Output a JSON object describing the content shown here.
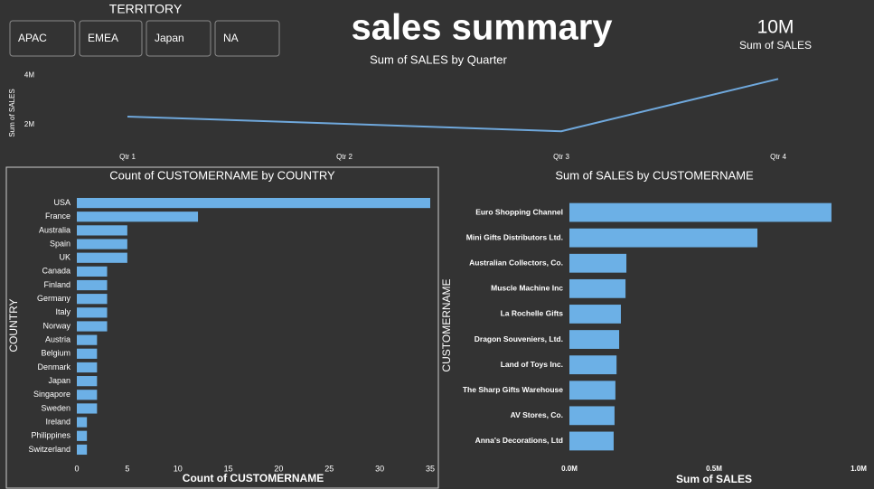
{
  "title": "sales summary",
  "slicer": {
    "title": "TERRITORY",
    "options": [
      "APAC",
      "EMEA",
      "Japan",
      "NA"
    ]
  },
  "kpi": {
    "value": "10M",
    "label": "Sum of SALES"
  },
  "chart_data": [
    {
      "type": "line",
      "title": "Sum of SALES by Quarter",
      "y_label": "Sum of SALES",
      "categories": [
        "Qtr 1",
        "Qtr 2",
        "Qtr 3",
        "Qtr 4"
      ],
      "values": [
        2330000,
        2040000,
        1740000,
        3850000
      ],
      "color": "#6fa8dc",
      "ylim": [
        1200000,
        4300000
      ],
      "yticks": [
        {
          "value": 2000000,
          "label": "2M"
        },
        {
          "value": 4000000,
          "label": "4M"
        }
      ]
    },
    {
      "type": "bar",
      "orientation": "horizontal",
      "title": "Count of CUSTOMERNAME by COUNTRY",
      "x_label": "Count of CUSTOMERNAME",
      "y_label": "COUNTRY",
      "categories": [
        "USA",
        "France",
        "Australia",
        "Spain",
        "UK",
        "Canada",
        "Finland",
        "Germany",
        "Italy",
        "Norway",
        "Austria",
        "Belgium",
        "Denmark",
        "Japan",
        "Singapore",
        "Sweden",
        "Ireland",
        "Philippines",
        "Switzerland"
      ],
      "values": [
        35,
        12,
        5,
        5,
        5,
        3,
        3,
        3,
        3,
        3,
        2,
        2,
        2,
        2,
        2,
        2,
        1,
        1,
        1
      ],
      "color": "#6cb0e6",
      "xlim": [
        0,
        35
      ],
      "xticks": [
        0,
        5,
        10,
        15,
        20,
        25,
        30,
        35
      ]
    },
    {
      "type": "bar",
      "orientation": "horizontal",
      "title": "Sum of SALES by CUSTOMERNAME",
      "x_label": "Sum of SALES",
      "y_label": "CUSTOMERNAME",
      "categories": [
        "Euro Shopping Channel",
        "Mini Gifts Distributors Ltd.",
        "Australian Collectors, Co.",
        "Muscle Machine Inc",
        "La Rochelle Gifts",
        "Dragon Souveniers, Ltd.",
        "Land of Toys Inc.",
        "The Sharp Gifts Warehouse",
        "AV Stores, Co.",
        "Anna's Decorations, Ltd"
      ],
      "values": [
        906000,
        650000,
        197000,
        194000,
        178000,
        172000,
        163000,
        159000,
        156000,
        153000
      ],
      "color": "#6cb0e6",
      "xlim": [
        0,
        1000000
      ],
      "xticks": [
        {
          "value": 0,
          "label": "0.0M"
        },
        {
          "value": 500000,
          "label": "0.5M"
        },
        {
          "value": 1000000,
          "label": "1.0M"
        }
      ]
    }
  ]
}
